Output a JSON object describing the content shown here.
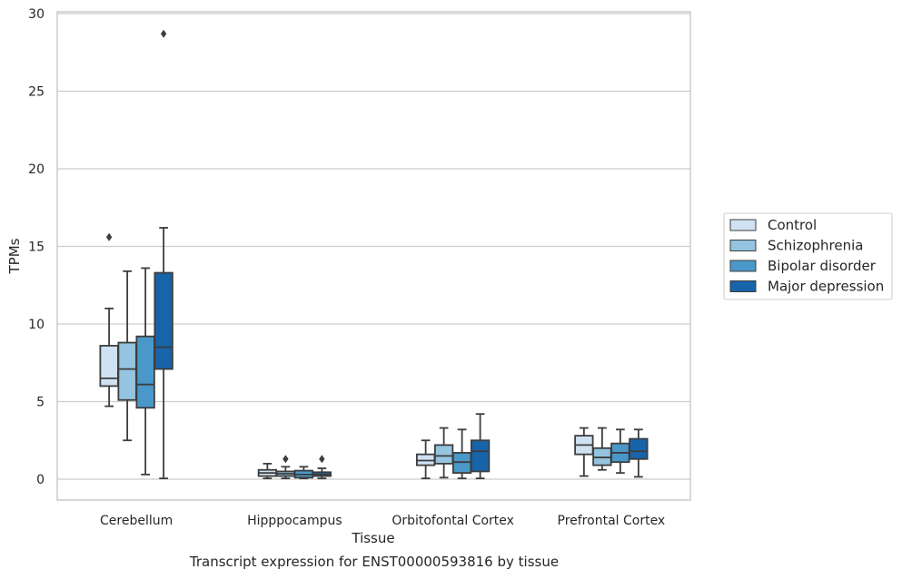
{
  "chart_data": {
    "type": "box",
    "ylabel": "TPMs",
    "xlabel": "Tissue",
    "ylim": [
      -1.4,
      30.2
    ],
    "yticks": [
      0,
      5,
      10,
      15,
      20,
      25,
      30
    ],
    "grid": "horizontal",
    "legend_position": "right",
    "categories": [
      "Cerebellum",
      "Hipppocampus",
      "Orbitofontal Cortex",
      "Prefrontal Cortex"
    ],
    "series": [
      {
        "name": "Control",
        "color": "#d0e1f2",
        "boxes": [
          {
            "whislo": 4.7,
            "q1": 6.0,
            "med": 6.5,
            "q3": 8.6,
            "whishi": 11.0,
            "fliers": [
              15.6
            ]
          },
          {
            "whislo": 0.05,
            "q1": 0.2,
            "med": 0.4,
            "q3": 0.6,
            "whishi": 1.0,
            "fliers": []
          },
          {
            "whislo": 0.05,
            "q1": 0.9,
            "med": 1.2,
            "q3": 1.6,
            "whishi": 2.5,
            "fliers": []
          },
          {
            "whislo": 0.2,
            "q1": 1.6,
            "med": 2.2,
            "q3": 2.8,
            "whishi": 3.3,
            "fliers": []
          }
        ]
      },
      {
        "name": "Schizophrenia",
        "color": "#94c4df",
        "boxes": [
          {
            "whislo": 2.5,
            "q1": 5.1,
            "med": 7.1,
            "q3": 8.8,
            "whishi": 13.4,
            "fliers": []
          },
          {
            "whislo": 0.05,
            "q1": 0.2,
            "med": 0.35,
            "q3": 0.5,
            "whishi": 0.8,
            "fliers": [
              1.3
            ]
          },
          {
            "whislo": 0.1,
            "q1": 1.0,
            "med": 1.5,
            "q3": 2.2,
            "whishi": 3.3,
            "fliers": []
          },
          {
            "whislo": 0.6,
            "q1": 0.9,
            "med": 1.4,
            "q3": 2.0,
            "whishi": 3.3,
            "fliers": []
          }
        ]
      },
      {
        "name": "Bipolar disorder",
        "color": "#4a98c9",
        "boxes": [
          {
            "whislo": 0.3,
            "q1": 4.6,
            "med": 6.1,
            "q3": 9.2,
            "whishi": 13.6,
            "fliers": []
          },
          {
            "whislo": 0.05,
            "q1": 0.1,
            "med": 0.3,
            "q3": 0.55,
            "whishi": 0.8,
            "fliers": []
          },
          {
            "whislo": 0.05,
            "q1": 0.4,
            "med": 1.1,
            "q3": 1.7,
            "whishi": 3.2,
            "fliers": []
          },
          {
            "whislo": 0.4,
            "q1": 1.1,
            "med": 1.7,
            "q3": 2.3,
            "whishi": 3.2,
            "fliers": []
          }
        ]
      },
      {
        "name": "Major depression",
        "color": "#1764ab",
        "boxes": [
          {
            "whislo": 0.05,
            "q1": 7.1,
            "med": 8.5,
            "q3": 13.3,
            "whishi": 16.2,
            "fliers": [
              28.7
            ]
          },
          {
            "whislo": 0.05,
            "q1": 0.2,
            "med": 0.3,
            "q3": 0.45,
            "whishi": 0.7,
            "fliers": [
              1.3
            ]
          },
          {
            "whislo": 0.05,
            "q1": 0.5,
            "med": 1.8,
            "q3": 2.5,
            "whishi": 4.2,
            "fliers": []
          },
          {
            "whislo": 0.15,
            "q1": 1.3,
            "med": 1.8,
            "q3": 2.6,
            "whishi": 3.2,
            "fliers": []
          }
        ]
      }
    ]
  },
  "caption": "Transcript expression for ENST00000593816 by tissue"
}
